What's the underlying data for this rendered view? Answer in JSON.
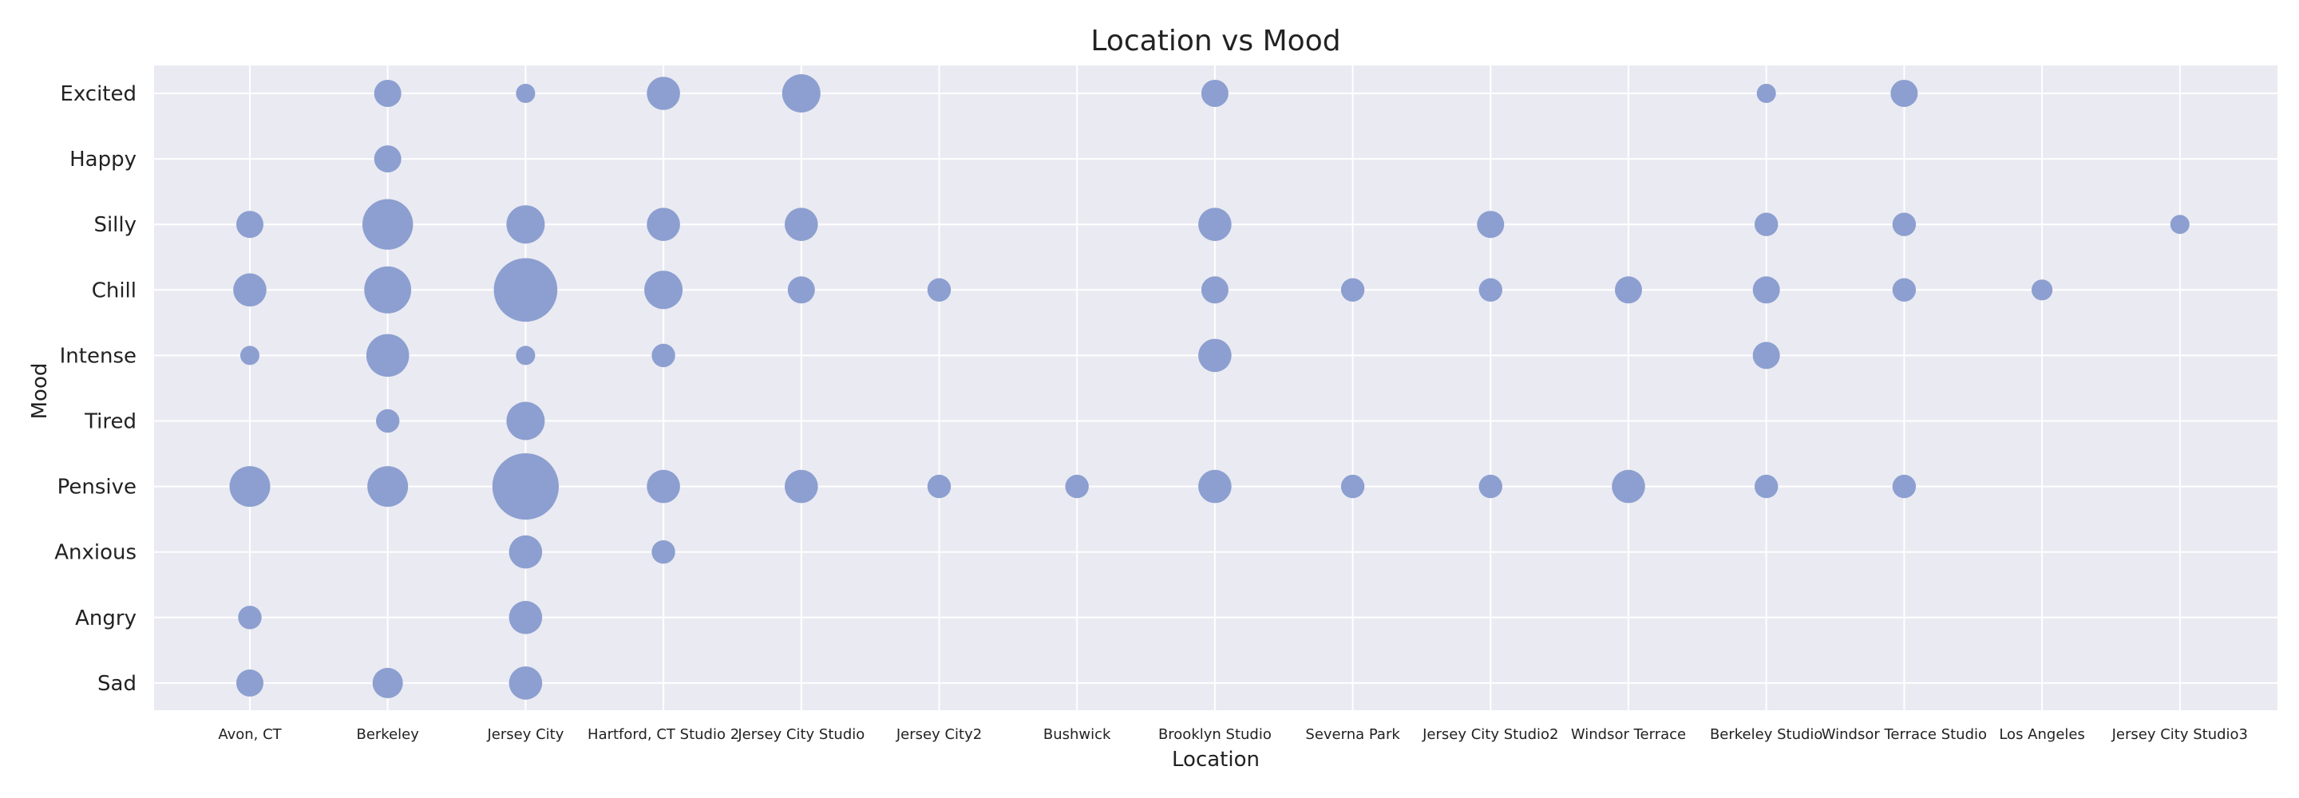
{
  "chart_data": {
    "type": "scatter",
    "title": "Location vs Mood",
    "xlabel": "Location",
    "ylabel": "Mood",
    "grid": true,
    "legend": "none",
    "colors": {
      "background": "#eaeaf2",
      "grid": "#ffffff",
      "marker": "#8c9fd0"
    },
    "x_categories": [
      "Avon, CT",
      "Berkeley",
      "Jersey City",
      "Hartford, CT Studio 2",
      "Jersey City Studio",
      "Jersey City2",
      "Bushwick",
      "Brooklyn Studio",
      "Severna Park",
      "Jersey City Studio2",
      "Windsor Terrace",
      "Berkeley Studio",
      "Windsor Terrace Studio",
      "Los Angeles",
      "Jersey City Studio3"
    ],
    "y_categories": [
      "Excited",
      "Happy",
      "Silly",
      "Chill",
      "Intense",
      "Tired",
      "Pensive",
      "Anxious",
      "Angry",
      "Sad"
    ],
    "points": [
      {
        "x": "Berkeley",
        "y": "Excited",
        "size": 2
      },
      {
        "x": "Jersey City",
        "y": "Excited",
        "size": 1
      },
      {
        "x": "Hartford, CT Studio 2",
        "y": "Excited",
        "size": 3
      },
      {
        "x": "Jersey City Studio",
        "y": "Excited",
        "size": 4
      },
      {
        "x": "Brooklyn Studio",
        "y": "Excited",
        "size": 2
      },
      {
        "x": "Berkeley Studio",
        "y": "Excited",
        "size": 1
      },
      {
        "x": "Windsor Terrace Studio",
        "y": "Excited",
        "size": 2
      },
      {
        "x": "Berkeley",
        "y": "Happy",
        "size": 2
      },
      {
        "x": "Avon, CT",
        "y": "Silly",
        "size": 2
      },
      {
        "x": "Berkeley",
        "y": "Silly",
        "size": 7
      },
      {
        "x": "Jersey City",
        "y": "Silly",
        "size": 4
      },
      {
        "x": "Hartford, CT Studio 2",
        "y": "Silly",
        "size": 3
      },
      {
        "x": "Jersey City Studio",
        "y": "Silly",
        "size": 3
      },
      {
        "x": "Brooklyn Studio",
        "y": "Silly",
        "size": 3
      },
      {
        "x": "Jersey City Studio2",
        "y": "Silly",
        "size": 2
      },
      {
        "x": "Berkeley Studio",
        "y": "Silly",
        "size": 1.5
      },
      {
        "x": "Windsor Terrace Studio",
        "y": "Silly",
        "size": 1.5
      },
      {
        "x": "Jersey City Studio3",
        "y": "Silly",
        "size": 1
      },
      {
        "x": "Avon, CT",
        "y": "Chill",
        "size": 3
      },
      {
        "x": "Berkeley",
        "y": "Chill",
        "size": 6
      },
      {
        "x": "Jersey City",
        "y": "Chill",
        "size": 11
      },
      {
        "x": "Hartford, CT Studio 2",
        "y": "Chill",
        "size": 4
      },
      {
        "x": "Jersey City Studio",
        "y": "Chill",
        "size": 2
      },
      {
        "x": "Jersey City2",
        "y": "Chill",
        "size": 1.5
      },
      {
        "x": "Brooklyn Studio",
        "y": "Chill",
        "size": 2
      },
      {
        "x": "Severna Park",
        "y": "Chill",
        "size": 1.5
      },
      {
        "x": "Jersey City Studio2",
        "y": "Chill",
        "size": 1.5
      },
      {
        "x": "Windsor Terrace",
        "y": "Chill",
        "size": 2
      },
      {
        "x": "Berkeley Studio",
        "y": "Chill",
        "size": 2
      },
      {
        "x": "Windsor Terrace Studio",
        "y": "Chill",
        "size": 1.5
      },
      {
        "x": "Los Angeles",
        "y": "Chill",
        "size": 1.2
      },
      {
        "x": "Avon, CT",
        "y": "Intense",
        "size": 1
      },
      {
        "x": "Berkeley",
        "y": "Intense",
        "size": 5
      },
      {
        "x": "Jersey City",
        "y": "Intense",
        "size": 1
      },
      {
        "x": "Hartford, CT Studio 2",
        "y": "Intense",
        "size": 1.5
      },
      {
        "x": "Brooklyn Studio",
        "y": "Intense",
        "size": 3
      },
      {
        "x": "Berkeley Studio",
        "y": "Intense",
        "size": 2
      },
      {
        "x": "Berkeley",
        "y": "Tired",
        "size": 1.5
      },
      {
        "x": "Jersey City",
        "y": "Tired",
        "size": 4
      },
      {
        "x": "Avon, CT",
        "y": "Pensive",
        "size": 4.5
      },
      {
        "x": "Berkeley",
        "y": "Pensive",
        "size": 4.5
      },
      {
        "x": "Jersey City",
        "y": "Pensive",
        "size": 12
      },
      {
        "x": "Hartford, CT Studio 2",
        "y": "Pensive",
        "size": 3
      },
      {
        "x": "Jersey City Studio",
        "y": "Pensive",
        "size": 3
      },
      {
        "x": "Jersey City2",
        "y": "Pensive",
        "size": 1.5
      },
      {
        "x": "Bushwick",
        "y": "Pensive",
        "size": 1.5
      },
      {
        "x": "Brooklyn Studio",
        "y": "Pensive",
        "size": 3
      },
      {
        "x": "Severna Park",
        "y": "Pensive",
        "size": 1.5
      },
      {
        "x": "Jersey City Studio2",
        "y": "Pensive",
        "size": 1.5
      },
      {
        "x": "Windsor Terrace",
        "y": "Pensive",
        "size": 3
      },
      {
        "x": "Berkeley Studio",
        "y": "Pensive",
        "size": 1.5
      },
      {
        "x": "Windsor Terrace Studio",
        "y": "Pensive",
        "size": 1.5
      },
      {
        "x": "Jersey City",
        "y": "Anxious",
        "size": 3
      },
      {
        "x": "Hartford, CT Studio 2",
        "y": "Anxious",
        "size": 1.5
      },
      {
        "x": "Avon, CT",
        "y": "Angry",
        "size": 1.5
      },
      {
        "x": "Jersey City",
        "y": "Angry",
        "size": 3
      },
      {
        "x": "Avon, CT",
        "y": "Sad",
        "size": 2
      },
      {
        "x": "Berkeley",
        "y": "Sad",
        "size": 2.5
      },
      {
        "x": "Jersey City",
        "y": "Sad",
        "size": 3
      }
    ]
  }
}
